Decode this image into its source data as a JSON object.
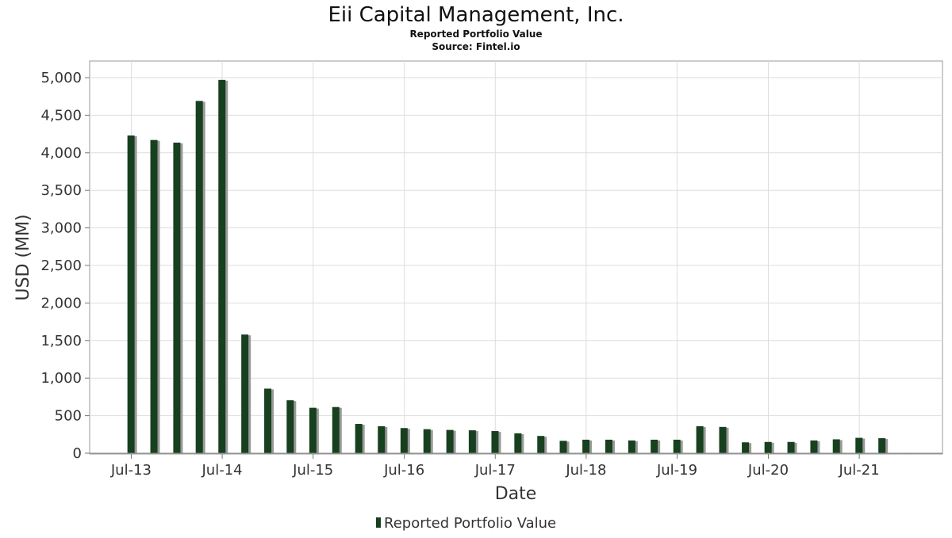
{
  "chart_data": {
    "type": "bar",
    "title": "Eii Capital Management, Inc.",
    "subtitle_lines": [
      "Reported Portfolio Value",
      "Source: Fintel.io"
    ],
    "xlabel": "Date",
    "ylabel": "USD (MM)",
    "ylim": [
      0,
      5200
    ],
    "yticks": [
      0,
      500,
      1000,
      1500,
      2000,
      2500,
      3000,
      3500,
      4000,
      4500,
      5000
    ],
    "ytick_labels": [
      "0",
      "500",
      "1,000",
      "1,500",
      "2,000",
      "2,500",
      "3,000",
      "3,500",
      "4,000",
      "4,500",
      "5,000"
    ],
    "xlim": [
      "2013-01-15",
      "2022-05-31"
    ],
    "xticks": [
      "2013-07-01",
      "2014-07-01",
      "2015-07-01",
      "2016-07-01",
      "2017-07-01",
      "2018-07-01",
      "2019-07-01",
      "2020-07-01",
      "2021-07-01"
    ],
    "xtick_labels": [
      "Jul-13",
      "Jul-14",
      "Jul-15",
      "Jul-16",
      "Jul-17",
      "Jul-18",
      "Jul-19",
      "Jul-20",
      "Jul-21"
    ],
    "grid": true,
    "legend_position": "bottom",
    "series": [
      {
        "name": "Reported Portfolio Value",
        "color": "#17401f",
        "shadow_color": "#999999",
        "x": [
          "2013-06-30",
          "2013-09-30",
          "2013-12-31",
          "2014-03-31",
          "2014-06-30",
          "2014-09-30",
          "2014-12-31",
          "2015-03-31",
          "2015-06-30",
          "2015-09-30",
          "2015-12-31",
          "2016-03-31",
          "2016-06-30",
          "2016-09-30",
          "2016-12-31",
          "2017-03-31",
          "2017-06-30",
          "2017-09-30",
          "2017-12-31",
          "2018-03-31",
          "2018-06-30",
          "2018-09-30",
          "2018-12-31",
          "2019-03-31",
          "2019-06-30",
          "2019-09-30",
          "2019-12-31",
          "2020-03-31",
          "2020-06-30",
          "2020-09-30",
          "2020-12-31",
          "2021-03-31",
          "2021-06-30",
          "2021-09-30",
          "2021-12-31"
        ],
        "values": [
          4230,
          4170,
          4135,
          4690,
          4970,
          1580,
          860,
          705,
          605,
          615,
          390,
          360,
          335,
          320,
          310,
          305,
          295,
          265,
          230,
          165,
          180,
          180,
          170,
          180,
          180,
          360,
          350,
          145,
          150,
          150,
          170,
          185,
          205,
          200,
          5
        ]
      }
    ]
  }
}
